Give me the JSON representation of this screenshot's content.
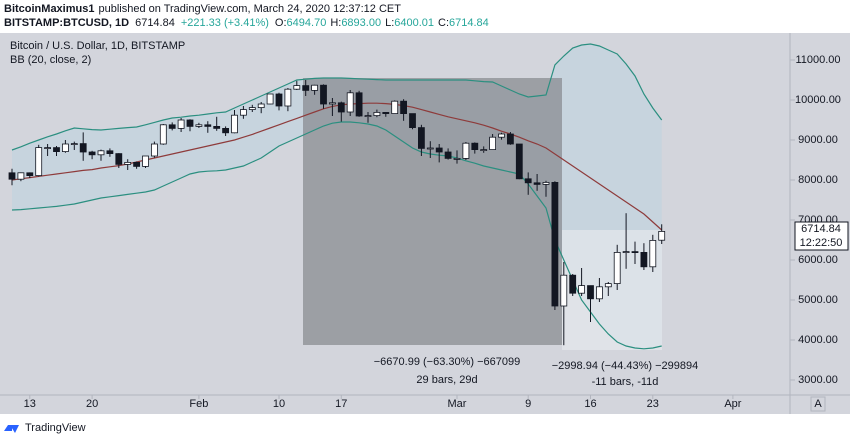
{
  "header": {
    "author": "BitcoinMaximus1",
    "published": "published on TradingView.com, March 24, 2020 12:37:12 CET",
    "symbol": "BITSTAMP:BTCUSD, 1D",
    "last": "6714.84",
    "change": "+221.33 (+3.41%)",
    "o_label": "O:",
    "o_value": "6494.70",
    "h_label": "H:",
    "h_value": "6893.00",
    "l_label": "L:",
    "l_value": "6400.01",
    "c_label": "C:",
    "c_value": "6714.84"
  },
  "chart_data": {
    "type": "candlestick",
    "title": "Bitcoin / U.S. Dollar, 1D, BITSTAMP",
    "indicator": "BB (20, close, 2)",
    "categories": [
      "Jan 11",
      "Jan 12",
      "Jan 13",
      "Jan 14",
      "Jan 15",
      "Jan 16",
      "Jan 17",
      "Jan 18",
      "Jan 19",
      "Jan 20",
      "Jan 21",
      "Jan 22",
      "Jan 23",
      "Jan 24",
      "Jan 25",
      "Jan 26",
      "Jan 27",
      "Jan 28",
      "Jan 29",
      "Jan 30",
      "Jan 31",
      "Feb 1",
      "Feb 2",
      "Feb 3",
      "Feb 4",
      "Feb 5",
      "Feb 6",
      "Feb 7",
      "Feb 8",
      "Feb 9",
      "Feb 10",
      "Feb 11",
      "Feb 12",
      "Feb 13",
      "Feb 14",
      "Feb 15",
      "Feb 16",
      "Feb 17",
      "Feb 18",
      "Feb 19",
      "Feb 20",
      "Feb 21",
      "Feb 22",
      "Feb 23",
      "Feb 24",
      "Feb 25",
      "Feb 26",
      "Feb 27",
      "Feb 28",
      "Feb 29",
      "Mar 1",
      "Mar 2",
      "Mar 3",
      "Mar 4",
      "Mar 5",
      "Mar 6",
      "Mar 7",
      "Mar 8",
      "Mar 9",
      "Mar 10",
      "Mar 11",
      "Mar 12",
      "Mar 13",
      "Mar 14",
      "Mar 15",
      "Mar 16",
      "Mar 17",
      "Mar 18",
      "Mar 19",
      "Mar 20",
      "Mar 21",
      "Mar 22",
      "Mar 23",
      "Mar 24",
      "Mar 25",
      "Mar 26",
      "Mar 27",
      "Mar 28",
      "Mar 29",
      "Mar 30",
      "Mar 31",
      "Apr 1",
      "Apr 2",
      "Apr 3",
      "Apr 4",
      "Apr 5",
      "Apr 6"
    ],
    "open": [
      8180,
      8020,
      8180,
      8110,
      8810,
      8810,
      8710,
      8900,
      8910,
      8700,
      8630,
      8730,
      8660,
      8390,
      8440,
      8340,
      8600,
      8900,
      9380,
      9290,
      9500,
      9340,
      9380,
      9340,
      9290,
      9180,
      9620,
      9760,
      9810,
      9900,
      10150,
      9850,
      10270,
      10360,
      10240,
      10370,
      9900,
      9930,
      9700,
      10180,
      9600,
      9610,
      9690,
      9660,
      9970,
      9660,
      9310,
      8790,
      8800,
      8700,
      8540,
      8540,
      8920,
      8760,
      8760,
      9070,
      9150,
      8900,
      8030,
      7930,
      7890,
      7940,
      4850,
      5620,
      5170,
      5360,
      5030,
      5330,
      5410,
      6190,
      6210,
      6190,
      5830,
      6494.7,
      null,
      null,
      null,
      null,
      null,
      null,
      null,
      null,
      null,
      null,
      null,
      null,
      null
    ],
    "high": [
      8280,
      8190,
      8190,
      8880,
      8900,
      8850,
      9000,
      8960,
      9190,
      8730,
      8760,
      8790,
      8670,
      8520,
      8460,
      8600,
      8960,
      9400,
      9440,
      9550,
      9520,
      9430,
      9470,
      9580,
      9340,
      9750,
      9850,
      9880,
      9950,
      10150,
      10180,
      10300,
      10480,
      10500,
      10380,
      10390,
      10050,
      9960,
      10250,
      10230,
      9700,
      9760,
      9700,
      9990,
      10020,
      9660,
      9380,
      8970,
      8900,
      8790,
      8740,
      8950,
      8940,
      8840,
      9150,
      9180,
      9200,
      8900,
      8190,
      8150,
      7980,
      7970,
      5950,
      5650,
      5800,
      5360,
      5550,
      5450,
      6380,
      7170,
      6460,
      6420,
      6630,
      6893,
      null,
      null,
      null,
      null,
      null,
      null,
      null,
      null,
      null,
      null,
      null,
      null,
      null
    ],
    "low": [
      7870,
      7970,
      8050,
      8090,
      8600,
      8600,
      8680,
      8750,
      8480,
      8520,
      8480,
      8580,
      8300,
      8250,
      8280,
      8300,
      8560,
      8880,
      9240,
      9200,
      9220,
      9300,
      9180,
      9230,
      9100,
      9170,
      9530,
      9700,
      9670,
      9890,
      9740,
      9720,
      10250,
      10100,
      10130,
      9780,
      9600,
      9460,
      9600,
      9580,
      9430,
      9570,
      9580,
      9650,
      9480,
      9270,
      8600,
      8550,
      8440,
      8510,
      8410,
      8500,
      8660,
      8680,
      8750,
      9010,
      8880,
      8020,
      7630,
      7730,
      7580,
      4750,
      3870,
      5100,
      5100,
      4450,
      4950,
      5100,
      5250,
      5780,
      5900,
      5750,
      5700,
      6400.01,
      null,
      null,
      null,
      null,
      null,
      null,
      null,
      null,
      null,
      null,
      null,
      null,
      null
    ],
    "close": [
      8020,
      8180,
      8110,
      8810,
      8810,
      8710,
      8900,
      8910,
      8700,
      8630,
      8730,
      8660,
      8390,
      8440,
      8340,
      8600,
      8900,
      9380,
      9290,
      9500,
      9340,
      9380,
      9340,
      9290,
      9180,
      9620,
      9760,
      9810,
      9900,
      10150,
      9850,
      10270,
      10360,
      10240,
      10370,
      9900,
      9930,
      9700,
      10180,
      9600,
      9610,
      9690,
      9660,
      9970,
      9660,
      9310,
      8790,
      8800,
      8700,
      8540,
      8540,
      8920,
      8760,
      8760,
      9070,
      9150,
      8900,
      8030,
      7930,
      7890,
      7940,
      4850,
      5620,
      5170,
      5360,
      5030,
      5330,
      5410,
      6190,
      6210,
      6190,
      5830,
      6490,
      6714.84,
      null,
      null,
      null,
      null,
      null,
      null,
      null,
      null,
      null,
      null,
      null,
      null,
      null
    ],
    "bb_upper": [
      8750,
      8830,
      8920,
      9000,
      9080,
      9150,
      9230,
      9300,
      9280,
      9260,
      9250,
      9270,
      9290,
      9310,
      9325,
      9380,
      9440,
      9500,
      9550,
      9570,
      9600,
      9620,
      9650,
      9680,
      9700,
      9800,
      9900,
      10000,
      10100,
      10200,
      10300,
      10400,
      10500,
      10520,
      10540,
      10550,
      10550,
      10550,
      10540,
      10530,
      10520,
      10510,
      10500,
      10500,
      10500,
      10500,
      10500,
      10500,
      10500,
      10500,
      10500,
      10500,
      10480,
      10460,
      10450,
      10350,
      10250,
      10150,
      10075,
      10100,
      10125,
      10875,
      11100,
      11300,
      11375,
      11400,
      11350,
      11250,
      11150,
      10900,
      10600,
      10150,
      9800,
      9500,
      null,
      null,
      null,
      null,
      null,
      null,
      null,
      null,
      null,
      null,
      null,
      null,
      null
    ],
    "bb_basis": [
      8000,
      8030,
      8060,
      8090,
      8120,
      8150,
      8180,
      8210,
      8240,
      8260,
      8300,
      8330,
      8360,
      8400,
      8450,
      8500,
      8550,
      8600,
      8650,
      8700,
      8750,
      8800,
      8850,
      8900,
      8950,
      9000,
      9070,
      9140,
      9220,
      9300,
      9380,
      9460,
      9540,
      9620,
      9700,
      9780,
      9840,
      9880,
      9900,
      9910,
      9920,
      9920,
      9910,
      9890,
      9860,
      9820,
      9760,
      9700,
      9640,
      9580,
      9530,
      9480,
      9430,
      9370,
      9300,
      9220,
      9150,
      9070,
      8980,
      8900,
      8800,
      8650,
      8500,
      8350,
      8200,
      8050,
      7900,
      7750,
      7600,
      7450,
      7300,
      7150,
      6950,
      6750,
      null,
      null,
      null,
      null,
      null,
      null,
      null,
      null,
      null,
      null,
      null,
      null,
      null
    ],
    "bb_lower": [
      7250,
      7260,
      7280,
      7300,
      7320,
      7340,
      7370,
      7400,
      7450,
      7500,
      7550,
      7580,
      7610,
      7640,
      7670,
      7700,
      7750,
      7850,
      7950,
      8050,
      8150,
      8200,
      8220,
      8230,
      8250,
      8300,
      8350,
      8450,
      8550,
      8700,
      8850,
      8950,
      9050,
      9150,
      9250,
      9350,
      9420,
      9450,
      9450,
      9430,
      9400,
      9350,
      9250,
      9100,
      8950,
      8800,
      8700,
      8650,
      8620,
      8600,
      8550,
      8480,
      8420,
      8350,
      8300,
      8250,
      8200,
      8150,
      7900,
      7600,
      7300,
      6500,
      6000,
      5500,
      5000,
      4700,
      4400,
      4150,
      3950,
      3850,
      3800,
      3780,
      3800,
      3850,
      null,
      null,
      null,
      null,
      null,
      null,
      null,
      null,
      null,
      null,
      null,
      null,
      null
    ],
    "up_color": "#ffffff",
    "down_color": "#131722",
    "band_line_color": "#2b8f80",
    "basis_color": "#8e3b3b",
    "band_fill": "#c4d3df",
    "ylim": [
      2625,
      11650
    ],
    "yticks": [
      {
        "value": 3000,
        "label": "3000.00"
      },
      {
        "value": 4000,
        "label": "4000.00"
      },
      {
        "value": 5000,
        "label": "5000.00"
      },
      {
        "value": 6000,
        "label": "6000.00"
      },
      {
        "value": 7000,
        "label": "7000.00"
      },
      {
        "value": 8000,
        "label": "8000.00"
      },
      {
        "value": 9000,
        "label": "9000.00"
      },
      {
        "value": 10000,
        "label": "10000.00"
      },
      {
        "value": 11000,
        "label": "11000.00"
      }
    ],
    "xticks": [
      {
        "value": "Jan 13",
        "label": "13"
      },
      {
        "value": "Jan 20",
        "label": "20"
      },
      {
        "value": "Feb 1",
        "label": "Feb"
      },
      {
        "value": "Feb 10",
        "label": "10"
      },
      {
        "value": "Feb 17",
        "label": "17"
      },
      {
        "value": "Mar 1",
        "label": "Mar"
      },
      {
        "value": "Mar 9",
        "label": "9"
      },
      {
        "value": "Mar 16",
        "label": "16"
      },
      {
        "value": "Mar 23",
        "label": "23"
      },
      {
        "value": "Apr 1",
        "label": "Apr"
      }
    ],
    "price_tag": "6714.84",
    "countdown": "12:22:50",
    "measure1": {
      "change": "−6670.99 (−63.30%) −667099",
      "bars": "29 bars, 29d"
    },
    "measure2": {
      "change": "−2998.94 (−44.43%) −299894",
      "bars": "-11 bars, -11d"
    },
    "scale_button": "A"
  },
  "footer": {
    "brand": "TradingView"
  }
}
